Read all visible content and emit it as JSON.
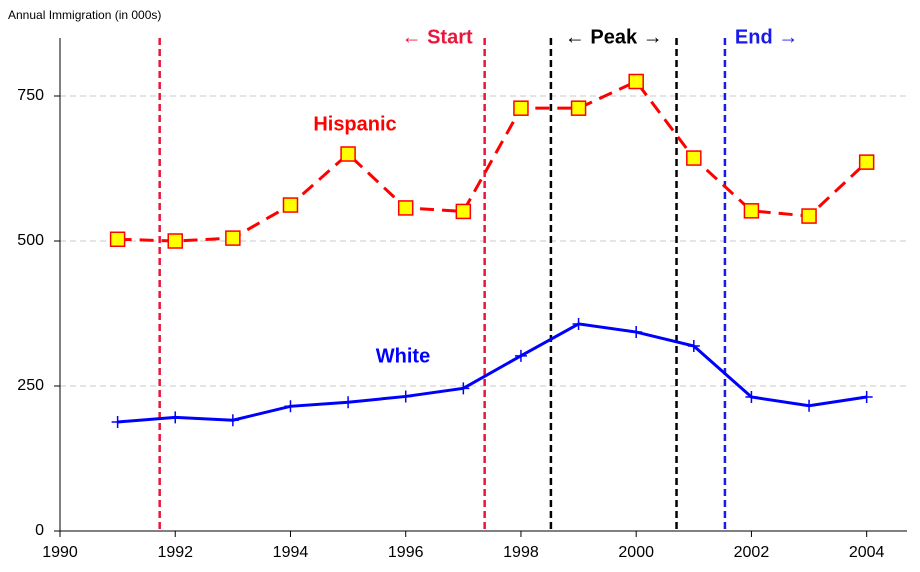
{
  "chart_data": {
    "type": "line",
    "y_axis_title": "Annual Immigration (in 000s)",
    "x": [
      1991,
      1992,
      1993,
      1994,
      1995,
      1996,
      1997,
      1998,
      1999,
      2000,
      2001,
      2002,
      2003,
      2004
    ],
    "series": [
      {
        "name": "Hispanic",
        "color": "#ff0000",
        "marker_fill": "#ffff00",
        "line_style": "dashed",
        "marker": "square",
        "values": [
          503,
          500,
          505,
          562,
          650,
          557,
          551,
          729,
          729,
          775,
          643,
          552,
          543,
          636
        ]
      },
      {
        "name": "White",
        "color": "#0000ff",
        "line_style": "solid",
        "marker": "plus",
        "values": [
          188,
          196,
          191,
          215,
          222,
          232,
          246,
          302,
          357,
          343,
          319,
          231,
          216,
          231
        ]
      }
    ],
    "phases": [
      {
        "label": "← Start",
        "from": 1991.73,
        "to": 1997.37,
        "color": "#e8173c"
      },
      {
        "label": "← Peak →",
        "from": 1998.52,
        "to": 2000.7,
        "color": "#000000"
      },
      {
        "label": "End →",
        "from": 2001.54,
        "color": "#1a1ae6"
      }
    ],
    "xlim": [
      1990,
      2004.7
    ],
    "xticks": [
      1990,
      1992,
      1994,
      1996,
      1998,
      2000,
      2002,
      2004
    ],
    "ylim": [
      0,
      850
    ],
    "yticks": [
      0,
      250,
      500,
      750
    ],
    "grid": true
  }
}
